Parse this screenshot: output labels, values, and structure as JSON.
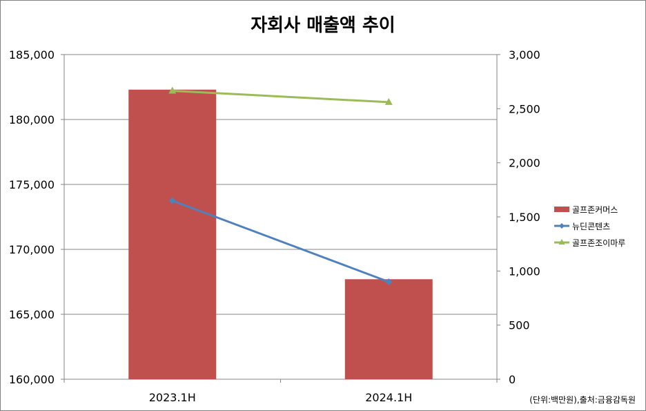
{
  "chart_data": {
    "type": "bar",
    "title": "자회사 매출액 추이",
    "categories": [
      "2023.1H",
      "2024.1H"
    ],
    "y_left": {
      "min": 160000,
      "max": 185000,
      "step": 5000,
      "tick_labels": [
        "160,000",
        "165,000",
        "170,000",
        "175,000",
        "180,000",
        "185,000"
      ]
    },
    "y_right": {
      "min": 0,
      "max": 3000,
      "step": 500,
      "tick_labels": [
        "0",
        "500",
        "1,000",
        "1,500",
        "2,000",
        "2,500",
        "3,000"
      ]
    },
    "series": [
      {
        "name": "골프존커머스",
        "type": "bar",
        "axis": "left",
        "color": "#c0504d",
        "values": [
          182300,
          167700
        ]
      },
      {
        "name": "뉴딘콘텐츠",
        "type": "line",
        "axis": "right",
        "color": "#4f81bd",
        "marker": "diamond",
        "values": [
          1650,
          900
        ]
      },
      {
        "name": "골프존조이마루",
        "type": "line",
        "axis": "right",
        "color": "#9bbb59",
        "marker": "triangle",
        "values": [
          2665,
          2560
        ]
      }
    ],
    "grid": true,
    "legend_position": "right",
    "source_note": "(단위:백만원),출처:금융감독원"
  }
}
